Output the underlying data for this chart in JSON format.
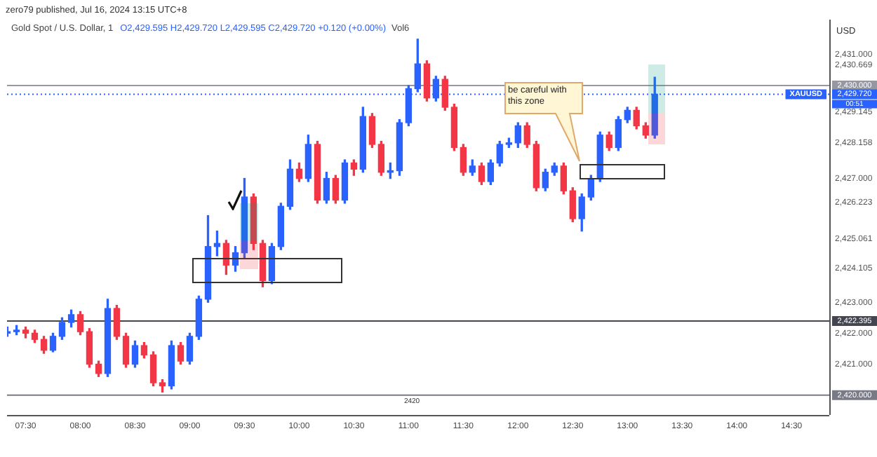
{
  "chart_data": {
    "type": "candlestick",
    "title": "Gold Spot / U.S. Dollar, 1",
    "subtitle": "zero79 published, Jul 16, 2024 13:15 UTC+8",
    "ylabel": "USD",
    "annotations": [
      "be careful with this zone",
      "O2,429.595 H2,429.720 L2,429.595 C2,429.720 +0.120 (+0.00%)",
      "Vol6",
      "XAUUSD",
      "2420",
      "00:51"
    ],
    "x": [
      7.333,
      7.417,
      7.5,
      7.583,
      7.667,
      7.75,
      7.833,
      7.917,
      8.0,
      8.083,
      8.167,
      8.25,
      8.333,
      8.417,
      8.5,
      8.583,
      8.667,
      8.75,
      8.833,
      8.917,
      9.0,
      9.083,
      9.167,
      9.25,
      9.333,
      9.417,
      9.5,
      9.583,
      9.667,
      9.75,
      9.833,
      9.917,
      10.0,
      10.083,
      10.167,
      10.25,
      10.333,
      10.417,
      10.5,
      10.583,
      10.667,
      10.75,
      10.833,
      10.917,
      11.0,
      11.083,
      11.167,
      11.25,
      11.333,
      11.417,
      11.5,
      11.583,
      11.667,
      11.75,
      11.833,
      11.917,
      12.0,
      12.083,
      12.167,
      12.25,
      12.333,
      12.417,
      12.5,
      12.583,
      12.667,
      12.75,
      12.833,
      12.917,
      13.0,
      13.083,
      13.167,
      13.25
    ],
    "ohlc": [
      [
        2422.0,
        2422.2,
        2421.9,
        2422.05
      ],
      [
        2422.05,
        2422.25,
        2421.95,
        2422.1
      ],
      [
        2422.1,
        2422.2,
        2421.85,
        2422.0
      ],
      [
        2422.0,
        2422.1,
        2421.7,
        2421.8
      ],
      [
        2421.8,
        2421.9,
        2421.35,
        2421.45
      ],
      [
        2421.45,
        2422.0,
        2421.4,
        2421.9
      ],
      [
        2421.9,
        2422.5,
        2421.8,
        2422.35
      ],
      [
        2422.35,
        2422.75,
        2422.2,
        2422.6
      ],
      [
        2422.6,
        2422.7,
        2421.95,
        2422.05
      ],
      [
        2422.05,
        2422.15,
        2420.9,
        2421.0
      ],
      [
        2421.0,
        2421.1,
        2420.6,
        2420.7
      ],
      [
        2420.7,
        2423.1,
        2420.6,
        2422.8
      ],
      [
        2422.8,
        2422.9,
        2421.8,
        2421.9
      ],
      [
        2421.9,
        2422.0,
        2420.9,
        2421.0
      ],
      [
        2421.0,
        2421.75,
        2420.9,
        2421.6
      ],
      [
        2421.6,
        2421.7,
        2421.2,
        2421.3
      ],
      [
        2421.3,
        2421.4,
        2420.3,
        2420.4
      ],
      [
        2420.4,
        2420.5,
        2420.1,
        2420.3
      ],
      [
        2420.3,
        2421.75,
        2420.2,
        2421.6
      ],
      [
        2421.6,
        2421.7,
        2421.0,
        2421.1
      ],
      [
        2421.1,
        2422.0,
        2421.0,
        2421.9
      ],
      [
        2421.9,
        2423.2,
        2421.8,
        2423.1
      ],
      [
        2423.1,
        2425.8,
        2423.0,
        2424.8
      ],
      [
        2424.8,
        2425.3,
        2424.5,
        2424.9
      ],
      [
        2424.9,
        2425.0,
        2423.9,
        2424.2
      ],
      [
        2424.2,
        2424.8,
        2424.0,
        2424.6
      ],
      [
        2424.6,
        2427.0,
        2424.4,
        2426.4
      ],
      [
        2426.4,
        2426.5,
        2424.7,
        2424.9
      ],
      [
        2424.9,
        2425.0,
        2423.5,
        2423.7
      ],
      [
        2423.7,
        2424.9,
        2423.6,
        2424.8
      ],
      [
        2424.8,
        2426.2,
        2424.7,
        2426.1
      ],
      [
        2426.1,
        2427.6,
        2426.0,
        2427.3
      ],
      [
        2427.3,
        2427.5,
        2426.9,
        2427.0
      ],
      [
        2427.0,
        2428.4,
        2426.9,
        2428.1
      ],
      [
        2428.1,
        2428.2,
        2426.2,
        2426.3
      ],
      [
        2426.3,
        2427.2,
        2426.2,
        2427.0
      ],
      [
        2427.0,
        2427.1,
        2426.2,
        2426.3
      ],
      [
        2426.3,
        2427.6,
        2426.2,
        2427.5
      ],
      [
        2427.5,
        2427.6,
        2427.1,
        2427.3
      ],
      [
        2427.3,
        2429.3,
        2427.2,
        2429.0
      ],
      [
        2429.0,
        2429.1,
        2428.0,
        2428.1
      ],
      [
        2428.1,
        2428.2,
        2427.1,
        2427.2
      ],
      [
        2427.2,
        2427.5,
        2427.0,
        2427.25
      ],
      [
        2427.25,
        2428.9,
        2427.1,
        2428.8
      ],
      [
        2428.8,
        2430.0,
        2428.7,
        2429.9
      ],
      [
        2429.9,
        2431.5,
        2429.8,
        2430.7
      ],
      [
        2430.7,
        2430.8,
        2429.5,
        2429.6
      ],
      [
        2429.6,
        2430.3,
        2429.5,
        2430.2
      ],
      [
        2430.2,
        2430.3,
        2429.2,
        2429.3
      ],
      [
        2429.3,
        2429.4,
        2427.9,
        2428.0
      ],
      [
        2428.0,
        2428.1,
        2427.1,
        2427.2
      ],
      [
        2427.2,
        2427.6,
        2427.1,
        2427.4
      ],
      [
        2427.4,
        2427.5,
        2426.8,
        2426.9
      ],
      [
        2426.9,
        2427.6,
        2426.8,
        2427.5
      ],
      [
        2427.5,
        2428.2,
        2427.4,
        2428.1
      ],
      [
        2428.1,
        2428.3,
        2428.0,
        2428.15
      ],
      [
        2428.15,
        2428.8,
        2428.0,
        2428.7
      ],
      [
        2428.7,
        2428.8,
        2428.0,
        2428.1
      ],
      [
        2428.1,
        2428.2,
        2426.6,
        2426.7
      ],
      [
        2426.7,
        2427.3,
        2426.6,
        2427.2
      ],
      [
        2427.2,
        2427.5,
        2427.1,
        2427.4
      ],
      [
        2427.4,
        2427.5,
        2426.5,
        2426.6
      ],
      [
        2426.6,
        2426.7,
        2425.6,
        2425.7
      ],
      [
        2425.7,
        2426.5,
        2425.3,
        2426.4
      ],
      [
        2426.4,
        2427.1,
        2426.3,
        2427.0
      ],
      [
        2427.0,
        2428.5,
        2426.9,
        2428.4
      ],
      [
        2428.4,
        2428.5,
        2427.9,
        2428.0
      ],
      [
        2428.0,
        2429.0,
        2427.9,
        2428.9
      ],
      [
        2428.9,
        2429.3,
        2428.8,
        2429.2
      ],
      [
        2429.2,
        2429.3,
        2428.6,
        2428.7
      ],
      [
        2428.7,
        2428.8,
        2428.3,
        2428.4
      ],
      [
        2428.4,
        2430.27,
        2428.3,
        2429.72
      ]
    ],
    "colors": [
      "#2962ff",
      "#2962ff",
      "#f23645",
      "#f23645",
      "#f23645",
      "#2962ff",
      "#2962ff",
      "#2962ff",
      "#f23645",
      "#f23645",
      "#f23645",
      "#2962ff",
      "#f23645",
      "#f23645",
      "#2962ff",
      "#f23645",
      "#f23645",
      "#f23645",
      "#2962ff",
      "#f23645",
      "#2962ff",
      "#2962ff",
      "#2962ff",
      "#2962ff",
      "#f23645",
      "#2962ff",
      "#2962ff",
      "#f23645",
      "#f23645",
      "#2962ff",
      "#2962ff",
      "#2962ff",
      "#f23645",
      "#2962ff",
      "#f23645",
      "#2962ff",
      "#f23645",
      "#2962ff",
      "#f23645",
      "#2962ff",
      "#f23645",
      "#f23645",
      "#2962ff",
      "#2962ff",
      "#2962ff",
      "#2962ff",
      "#f23645",
      "#2962ff",
      "#f23645",
      "#f23645",
      "#f23645",
      "#2962ff",
      "#f23645",
      "#2962ff",
      "#2962ff",
      "#2962ff",
      "#2962ff",
      "#f23645",
      "#f23645",
      "#2962ff",
      "#2962ff",
      "#f23645",
      "#f23645",
      "#2962ff",
      "#2962ff",
      "#2962ff",
      "#f23645",
      "#2962ff",
      "#2962ff",
      "#f23645",
      "#f23645",
      "#2962ff"
    ],
    "xlim": [
      7.33,
      14.845
    ],
    "xticks": [
      {
        "value": 7.5,
        "label": "07:30"
      },
      {
        "value": 8,
        "label": "08:00"
      },
      {
        "value": 8.5,
        "label": "08:30"
      },
      {
        "value": 9,
        "label": "09:00"
      },
      {
        "value": 9.5,
        "label": "09:30"
      },
      {
        "value": 10,
        "label": "10:00"
      },
      {
        "value": 10.5,
        "label": "10:30"
      },
      {
        "value": 11,
        "label": "11:00"
      },
      {
        "value": 11.5,
        "label": "11:30"
      },
      {
        "value": 12,
        "label": "12:00"
      },
      {
        "value": 12.5,
        "label": "12:30"
      },
      {
        "value": 13,
        "label": "13:00"
      },
      {
        "value": 13.5,
        "label": "13:30"
      },
      {
        "value": 14,
        "label": "14:00"
      },
      {
        "value": 14.5,
        "label": "14:30"
      }
    ],
    "ylim": [
      2419.36,
      2432.13
    ],
    "yticks": [
      {
        "value": 2421,
        "label": "2,421.000"
      },
      {
        "value": 2422,
        "label": "2,422.000"
      },
      {
        "value": 2423,
        "label": "2,423.000"
      },
      {
        "value": 2424.105,
        "label": "2,424.105"
      },
      {
        "value": 2425.061,
        "label": "2,425.061"
      },
      {
        "value": 2426.223,
        "label": "2,426.223"
      },
      {
        "value": 2427,
        "label": "2,427.000"
      },
      {
        "value": 2428.158,
        "label": "2,428.158"
      },
      {
        "value": 2429.145,
        "label": "2,429.145"
      },
      {
        "value": 2430.669,
        "label": "2,430.669"
      },
      {
        "value": 2431,
        "label": "2,431.000"
      }
    ],
    "ref_lines": [
      {
        "axis": "y",
        "value": 2430.0,
        "label": "2,430.000",
        "color": "#9598a1",
        "line_style": "solid"
      },
      {
        "axis": "y",
        "value": 2429.72,
        "label": "2,429.720",
        "color": "#2962ff",
        "line_style": "dotted"
      },
      {
        "axis": "y",
        "value": 2422.395,
        "label": "2,422.395",
        "color": "#434651",
        "line_style": "solid"
      },
      {
        "axis": "y",
        "value": 2420.0,
        "label": "2,420.000",
        "color": "#787b86",
        "line_style": "solid"
      }
    ],
    "grid": false,
    "legend": false
  }
}
